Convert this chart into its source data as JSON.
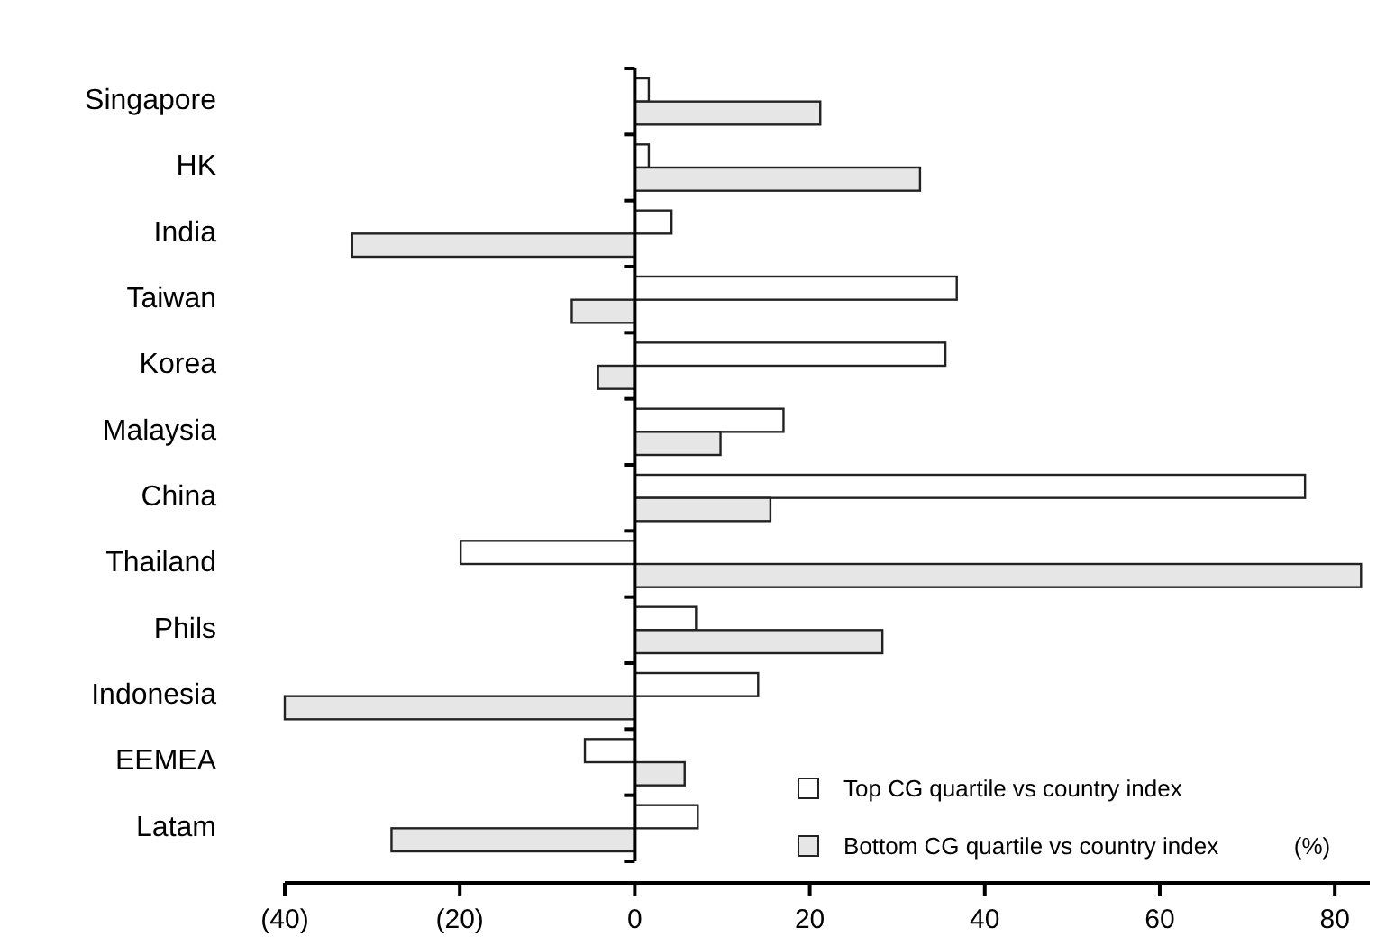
{
  "chart_data": {
    "type": "bar",
    "orientation": "horizontal",
    "categories": [
      "Singapore",
      "HK",
      "India",
      "Taiwan",
      "Korea",
      "Malaysia",
      "China",
      "Thailand",
      "Phils",
      "Indonesia",
      "EEMEA",
      "Latam"
    ],
    "series": [
      {
        "name": "Top CG quartile vs country index",
        "color": "#ffffff",
        "values": [
          1.6,
          1.6,
          4.2,
          36.8,
          35.5,
          17,
          76.6,
          -19.9,
          7,
          14.1,
          -5.7,
          7.2
        ]
      },
      {
        "name": "Bottom CG quartile vs country index",
        "color": "#e6e6e6",
        "values": [
          21.2,
          32.6,
          -32.3,
          -7.2,
          -4.2,
          9.8,
          15.5,
          83,
          28.3,
          -40,
          5.7,
          -27.8
        ]
      }
    ],
    "xlim": [
      -40,
      84
    ],
    "xticks": [
      {
        "value": -40,
        "label": "(40)"
      },
      {
        "value": -20,
        "label": "(20)"
      },
      0,
      20,
      40,
      60,
      80
    ],
    "legend": "bottom right",
    "annotations": [
      "(%)"
    ]
  }
}
